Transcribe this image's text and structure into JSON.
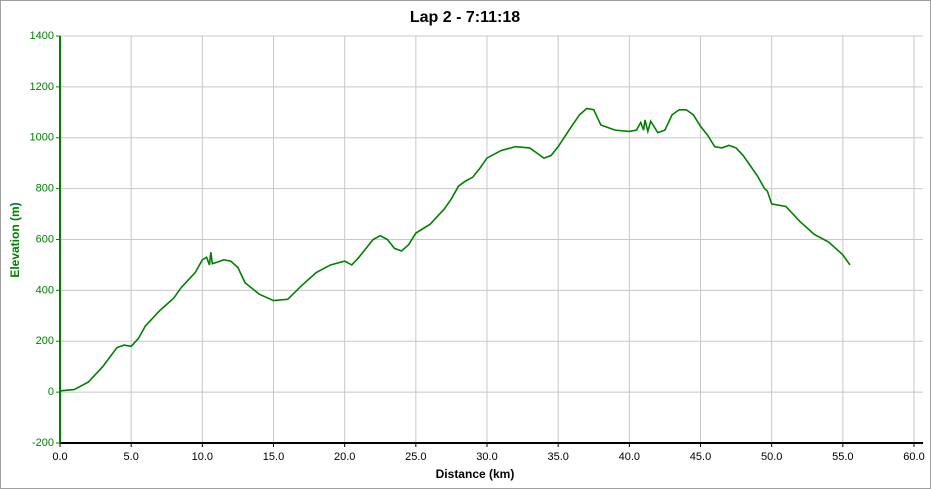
{
  "chart_data": {
    "type": "line",
    "title": "Lap 2 - 7:11:18",
    "x_label": "Distance (km)",
    "y_label": "Elevation (m)",
    "xlim": [
      0,
      60
    ],
    "ylim": [
      -200,
      1400
    ],
    "xticks": [
      {
        "value": 0,
        "label": "0.0"
      },
      {
        "value": 5,
        "label": "5.0"
      },
      {
        "value": 10,
        "label": "10.0"
      },
      {
        "value": 15,
        "label": "15.0"
      },
      {
        "value": 20,
        "label": "20.0"
      },
      {
        "value": 25,
        "label": "25.0"
      },
      {
        "value": 30,
        "label": "30.0"
      },
      {
        "value": 35,
        "label": "35.0"
      },
      {
        "value": 40,
        "label": "40.0"
      },
      {
        "value": 45,
        "label": "45.0"
      },
      {
        "value": 50,
        "label": "50.0"
      },
      {
        "value": 55,
        "label": "55.0"
      },
      {
        "value": 60,
        "label": "60.0"
      }
    ],
    "yticks": [
      -200,
      0,
      200,
      400,
      600,
      800,
      1000,
      1200,
      1400
    ],
    "grid": true,
    "series": [
      {
        "name": "Elevation",
        "color": "#008000",
        "x": [
          0,
          1,
          2,
          3,
          4,
          4.5,
          5,
          5.5,
          6,
          7,
          8,
          8.5,
          9,
          9.5,
          10,
          10.3,
          10.5,
          10.6,
          10.7,
          11,
          11.5,
          12,
          12.5,
          13,
          14,
          15,
          16,
          17,
          18,
          19,
          20,
          20.5,
          21,
          22,
          22.5,
          23,
          23.5,
          24,
          24.5,
          25,
          26,
          27,
          27.5,
          28,
          28.5,
          29,
          29.5,
          30,
          31,
          32,
          33,
          33.5,
          34,
          34.5,
          35,
          36,
          36.5,
          37,
          37.5,
          38,
          39,
          40,
          40.5,
          40.8,
          41,
          41.1,
          41.3,
          41.5,
          42,
          42.5,
          43,
          43.5,
          44,
          44.5,
          45,
          45.5,
          46,
          46.5,
          47,
          47.5,
          48,
          48.5,
          49,
          49.5,
          49.7,
          50,
          51,
          52,
          53,
          54,
          55,
          55.5
        ],
        "values": [
          5,
          10,
          40,
          100,
          175,
          185,
          180,
          210,
          260,
          320,
          370,
          410,
          440,
          470,
          520,
          530,
          500,
          550,
          505,
          510,
          520,
          515,
          490,
          430,
          385,
          360,
          365,
          420,
          470,
          500,
          515,
          500,
          530,
          600,
          615,
          600,
          565,
          555,
          580,
          625,
          660,
          720,
          760,
          810,
          830,
          845,
          880,
          920,
          950,
          965,
          960,
          940,
          920,
          930,
          965,
          1050,
          1090,
          1115,
          1110,
          1050,
          1030,
          1025,
          1030,
          1060,
          1030,
          1070,
          1025,
          1065,
          1020,
          1030,
          1090,
          1110,
          1110,
          1090,
          1045,
          1010,
          965,
          960,
          970,
          960,
          930,
          890,
          850,
          800,
          790,
          740,
          730,
          670,
          620,
          590,
          540,
          500
        ]
      }
    ]
  }
}
